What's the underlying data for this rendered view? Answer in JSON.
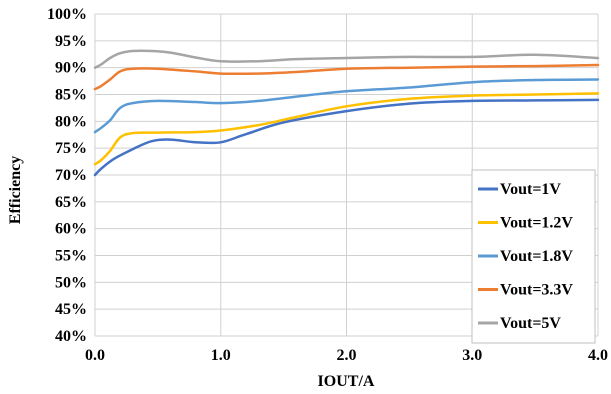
{
  "chart_data": {
    "type": "line",
    "xlabel": "IOUT/A",
    "ylabel": "Efficiency",
    "xlim": [
      0,
      4
    ],
    "ylim": [
      40,
      100
    ],
    "x_ticks": [
      "0.0",
      "1.0",
      "2.0",
      "3.0",
      "4.0"
    ],
    "y_ticks": [
      "40%",
      "45%",
      "50%",
      "55%",
      "60%",
      "65%",
      "70%",
      "75%",
      "80%",
      "85%",
      "90%",
      "95%",
      "100%"
    ],
    "grid": true,
    "legend_position": "bottom-right",
    "series": [
      {
        "name": "Vout=1V",
        "color": "#4472C4",
        "x": [
          0,
          0.05,
          0.15,
          0.3,
          0.45,
          0.6,
          0.8,
          1.0,
          1.2,
          1.5,
          2.0,
          2.5,
          3.0,
          3.5,
          4.0
        ],
        "y": [
          70,
          71.2,
          73,
          74.8,
          76.3,
          76.6,
          76.1,
          76.1,
          77.6,
          79.8,
          81.9,
          83.3,
          83.8,
          83.9,
          84.0
        ]
      },
      {
        "name": "Vout=1.2V",
        "color": "#FFC000",
        "x": [
          0,
          0.05,
          0.12,
          0.2,
          0.3,
          0.5,
          0.8,
          1.0,
          1.3,
          1.6,
          2.0,
          2.5,
          3.0,
          3.5,
          4.0
        ],
        "y": [
          72,
          72.8,
          74.5,
          77,
          77.8,
          77.9,
          78,
          78.3,
          79.3,
          80.8,
          82.8,
          84.2,
          84.8,
          85.0,
          85.2
        ]
      },
      {
        "name": "Vout=1.8V",
        "color": "#5B9BD5",
        "x": [
          0,
          0.05,
          0.12,
          0.2,
          0.3,
          0.5,
          0.8,
          1.0,
          1.3,
          1.6,
          2.0,
          2.5,
          3.0,
          3.5,
          4.0
        ],
        "y": [
          78,
          78.8,
          80.2,
          82.5,
          83.4,
          83.8,
          83.6,
          83.4,
          83.8,
          84.6,
          85.6,
          86.3,
          87.3,
          87.7,
          87.8
        ]
      },
      {
        "name": "Vout=3.3V",
        "color": "#ED7D31",
        "x": [
          0,
          0.05,
          0.12,
          0.2,
          0.3,
          0.5,
          0.8,
          1.0,
          1.3,
          1.6,
          2.0,
          2.5,
          3.0,
          3.5,
          4.0
        ],
        "y": [
          86,
          86.6,
          87.8,
          89.3,
          89.8,
          89.8,
          89.3,
          88.9,
          88.9,
          89.2,
          89.8,
          90.0,
          90.2,
          90.3,
          90.5
        ]
      },
      {
        "name": "Vout=5V",
        "color": "#A5A5A5",
        "x": [
          0,
          0.05,
          0.12,
          0.2,
          0.3,
          0.45,
          0.6,
          0.8,
          1.0,
          1.3,
          1.6,
          2.0,
          2.5,
          3.0,
          3.5,
          4.0
        ],
        "y": [
          90,
          90.6,
          91.8,
          92.7,
          93.1,
          93.1,
          92.8,
          91.9,
          91.2,
          91.2,
          91.6,
          91.8,
          92.0,
          92.0,
          92.4,
          91.8
        ]
      }
    ]
  }
}
